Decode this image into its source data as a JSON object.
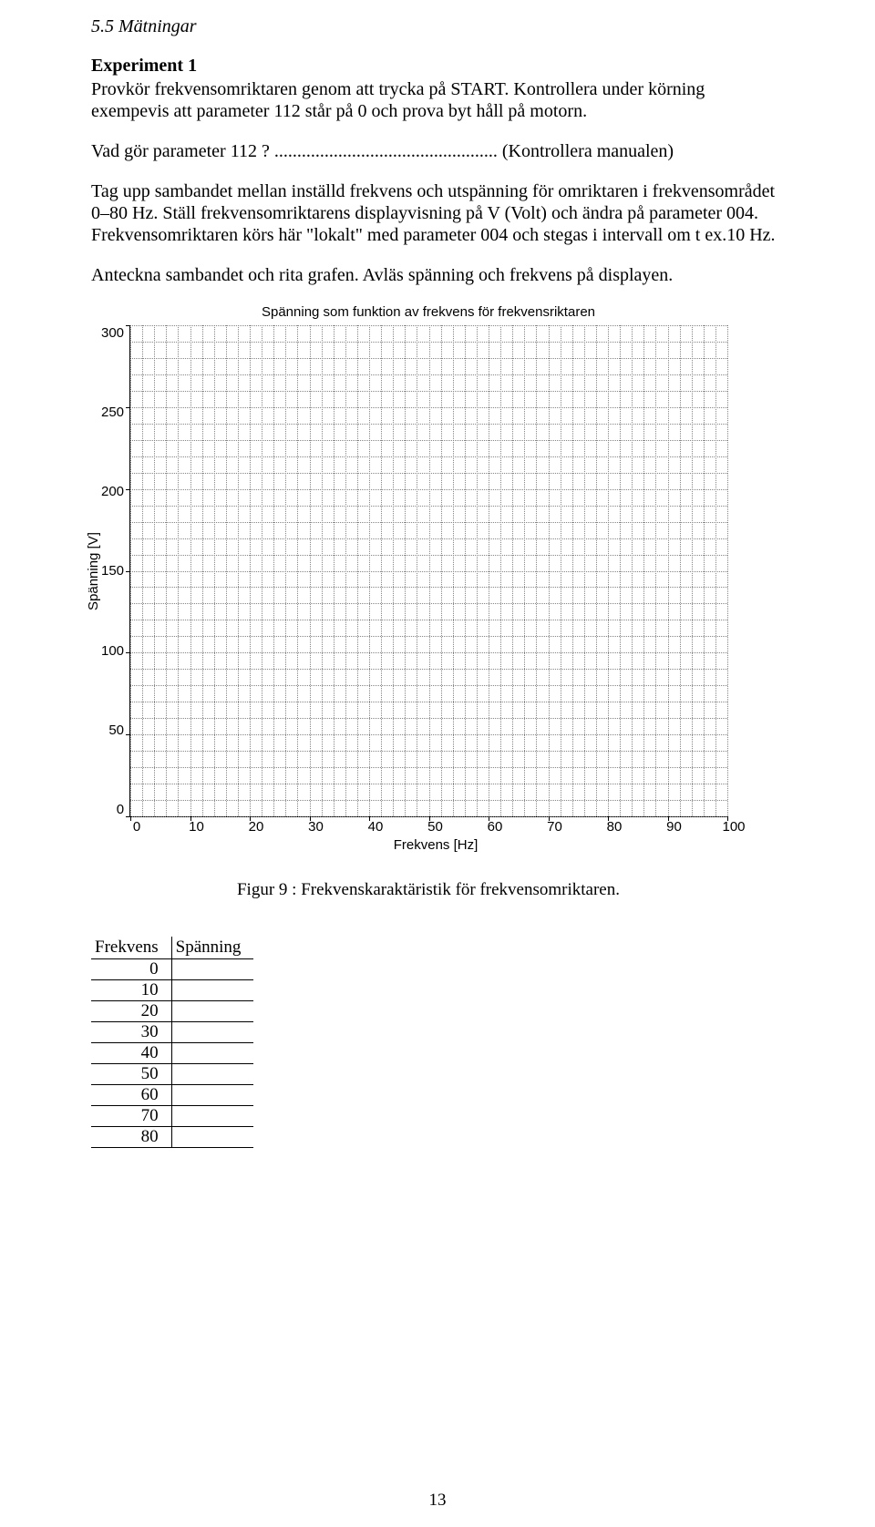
{
  "section_heading": "5.5 Mätningar",
  "experiment_title": "Experiment 1",
  "para1": "Provkör frekvensomriktaren genom att trycka på START. Kontrollera under körning exempevis att parameter 112 står på 0 och prova byt håll på motorn.",
  "para2_prefix": "Vad gör parameter 112 ? ",
  "para2_dots": ".................................................",
  "para2_suffix": "  (Kontrollera manualen)",
  "para3": "Tag upp sambandet mellan inställd frekvens och utspänning för omriktaren i frekvensområdet  0–80 Hz. Ställ frekvensomriktarens displayvisning på V (Volt) och ändra på parameter 004. Frekvensomriktaren körs här \"lokalt\" med parameter 004 och stegas i intervall om t ex.10 Hz.",
  "para4": "Anteckna sambandet och rita grafen. Avläs spänning och frekvens på displayen.",
  "chart": {
    "title": "Spänning som funktion av frekvens för frekvensriktaren",
    "ylabel": "Spänning [V]",
    "xlabel": "Frekvens [Hz]",
    "ylim": [
      0,
      300
    ],
    "ytick_step_major": 50,
    "ytick_step_minor": 10,
    "xlim": [
      0,
      100
    ],
    "xtick_step_major": 10,
    "xtick_step_minor": 2,
    "grid_color": "#7a7a7a",
    "axis_color": "#000000",
    "background_color": "#ffffff",
    "tick_fontsize": 15,
    "title_fontsize": 15,
    "label_fontsize": 15,
    "x_ticks": [
      0,
      10,
      20,
      30,
      40,
      50,
      60,
      70,
      80,
      90,
      100
    ],
    "y_ticks": [
      0,
      50,
      100,
      150,
      200,
      250,
      300
    ]
  },
  "figure_caption_prefix": "Figur ",
  "figure_number": "9",
  "figure_caption_suffix": " : Frekvenskaraktäristik för frekvensomriktaren.",
  "table": {
    "columns": [
      "Frekvens",
      "Spänning"
    ],
    "rows": [
      [
        "0",
        ""
      ],
      [
        "10",
        ""
      ],
      [
        "20",
        ""
      ],
      [
        "30",
        ""
      ],
      [
        "40",
        ""
      ],
      [
        "50",
        ""
      ],
      [
        "60",
        ""
      ],
      [
        "70",
        ""
      ],
      [
        "80",
        ""
      ]
    ]
  },
  "page_number": "13"
}
